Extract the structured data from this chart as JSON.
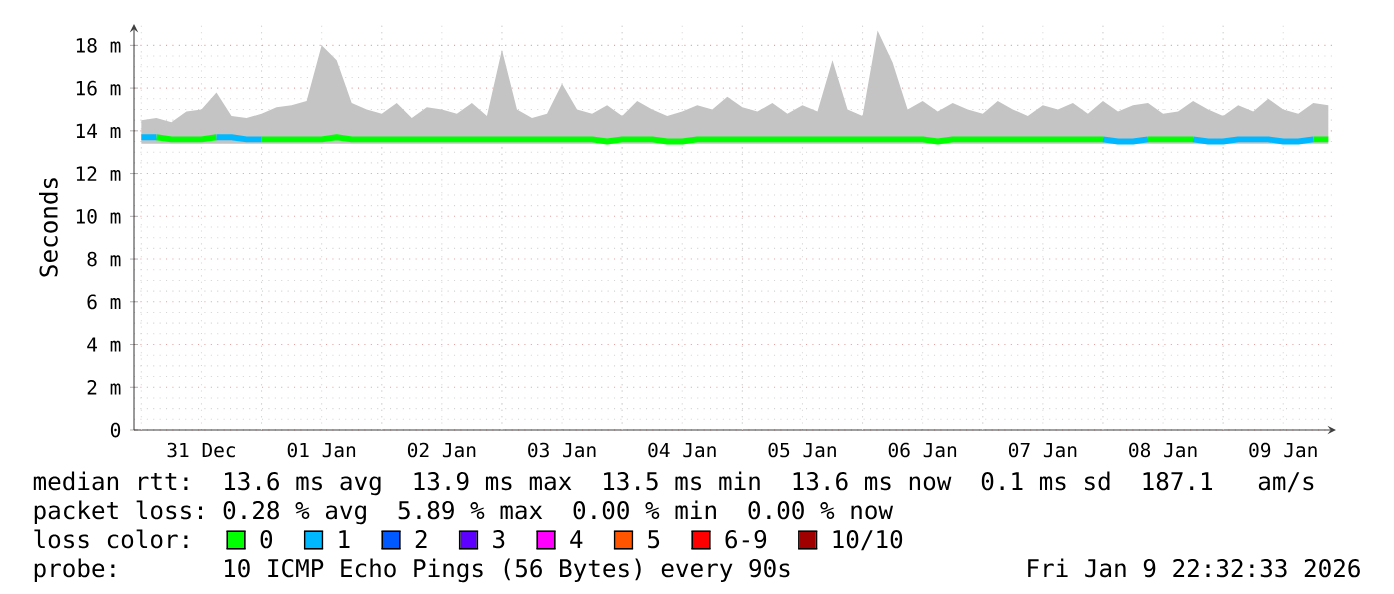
{
  "chart_data": {
    "type": "line",
    "ylabel": "Seconds",
    "legend_title": "loss color:",
    "legend": "bottom",
    "grid": true,
    "xlim": [
      "2025-12-30T22:32",
      "2026-01-09T22:32"
    ],
    "xticks": [
      {
        "value": "2025-12-31T12:00",
        "label": "31 Dec"
      },
      {
        "value": "2026-01-01T12:00",
        "label": "01 Jan"
      },
      {
        "value": "2026-01-02T12:00",
        "label": "02 Jan"
      },
      {
        "value": "2026-01-03T12:00",
        "label": "03 Jan"
      },
      {
        "value": "2026-01-04T12:00",
        "label": "04 Jan"
      },
      {
        "value": "2026-01-05T12:00",
        "label": "05 Jan"
      },
      {
        "value": "2026-01-06T12:00",
        "label": "06 Jan"
      },
      {
        "value": "2026-01-07T12:00",
        "label": "07 Jan"
      },
      {
        "value": "2026-01-08T12:00",
        "label": "08 Jan"
      },
      {
        "value": "2026-01-09T12:00",
        "label": "09 Jan"
      }
    ],
    "ylim": [
      0,
      19
    ],
    "yticks": [
      0,
      {
        "value": 2,
        "label": "2 m"
      },
      {
        "value": 4,
        "label": "4 m"
      },
      {
        "value": 6,
        "label": "6 m"
      },
      {
        "value": 8,
        "label": "8 m"
      },
      {
        "value": 10,
        "label": "10 m"
      },
      {
        "value": 12,
        "label": "12 m"
      },
      {
        "value": 14,
        "label": "14 m"
      },
      {
        "value": 16,
        "label": "16 m"
      },
      {
        "value": 18,
        "label": "18 m"
      }
    ],
    "x": [
      "2025-12-31T00:00",
      "2025-12-31T03:00",
      "2025-12-31T06:00",
      "2025-12-31T09:00",
      "2025-12-31T12:00",
      "2025-12-31T15:00",
      "2025-12-31T18:00",
      "2025-12-31T21:00",
      "2026-01-01T00:00",
      "2026-01-01T03:00",
      "2026-01-01T06:00",
      "2026-01-01T09:00",
      "2026-01-01T12:00",
      "2026-01-01T15:00",
      "2026-01-01T18:00",
      "2026-01-01T21:00",
      "2026-01-02T00:00",
      "2026-01-02T03:00",
      "2026-01-02T06:00",
      "2026-01-02T09:00",
      "2026-01-02T12:00",
      "2026-01-02T15:00",
      "2026-01-02T18:00",
      "2026-01-02T21:00",
      "2026-01-03T00:00",
      "2026-01-03T03:00",
      "2026-01-03T06:00",
      "2026-01-03T09:00",
      "2026-01-03T12:00",
      "2026-01-03T15:00",
      "2026-01-03T18:00",
      "2026-01-03T21:00",
      "2026-01-04T00:00",
      "2026-01-04T03:00",
      "2026-01-04T06:00",
      "2026-01-04T09:00",
      "2026-01-04T12:00",
      "2026-01-04T15:00",
      "2026-01-04T18:00",
      "2026-01-04T21:00",
      "2026-01-05T00:00",
      "2026-01-05T03:00",
      "2026-01-05T06:00",
      "2026-01-05T09:00",
      "2026-01-05T12:00",
      "2026-01-05T15:00",
      "2026-01-05T18:00",
      "2026-01-05T21:00",
      "2026-01-06T00:00",
      "2026-01-06T03:00",
      "2026-01-06T06:00",
      "2026-01-06T09:00",
      "2026-01-06T12:00",
      "2026-01-06T15:00",
      "2026-01-06T18:00",
      "2026-01-06T21:00",
      "2026-01-07T00:00",
      "2026-01-07T03:00",
      "2026-01-07T06:00",
      "2026-01-07T09:00",
      "2026-01-07T12:00",
      "2026-01-07T15:00",
      "2026-01-07T18:00",
      "2026-01-07T21:00",
      "2026-01-08T00:00",
      "2026-01-08T03:00",
      "2026-01-08T06:00",
      "2026-01-08T09:00",
      "2026-01-08T12:00",
      "2026-01-08T15:00",
      "2026-01-08T18:00",
      "2026-01-08T21:00",
      "2026-01-09T00:00",
      "2026-01-09T03:00",
      "2026-01-09T06:00",
      "2026-01-09T09:00",
      "2026-01-09T12:00",
      "2026-01-09T15:00",
      "2026-01-09T18:00",
      "2026-01-09T21:00"
    ],
    "series": [
      {
        "name": "0",
        "color": "#00ff00",
        "values": [
          null,
          13.7,
          13.6,
          13.6,
          13.6,
          13.7,
          null,
          null,
          13.6,
          13.6,
          13.6,
          13.6,
          13.6,
          13.7,
          13.6,
          13.6,
          13.6,
          13.6,
          13.6,
          13.6,
          13.6,
          13.6,
          13.6,
          13.6,
          13.6,
          13.6,
          13.6,
          13.6,
          13.6,
          13.6,
          13.6,
          13.5,
          13.6,
          13.6,
          13.6,
          13.5,
          13.5,
          13.6,
          13.6,
          13.6,
          13.6,
          13.6,
          13.6,
          13.6,
          13.6,
          13.6,
          13.6,
          13.6,
          13.6,
          13.6,
          13.6,
          13.6,
          13.6,
          13.5,
          13.6,
          13.6,
          13.6,
          13.6,
          13.6,
          13.6,
          13.6,
          13.6,
          13.6,
          13.6,
          13.6,
          null,
          null,
          13.6,
          13.6,
          13.6,
          13.6,
          null,
          null,
          null,
          null,
          null,
          null,
          null,
          13.6,
          13.6
        ],
        "lower": [
          13.4,
          13.4,
          13.4,
          13.4,
          13.4,
          13.4,
          13.4,
          13.4,
          13.4,
          13.4,
          13.4,
          13.4,
          13.4,
          13.4,
          13.4,
          13.4,
          13.4,
          13.4,
          13.4,
          13.4,
          13.4,
          13.4,
          13.4,
          13.4,
          13.4,
          13.4,
          13.4,
          13.4,
          13.4,
          13.4,
          13.4,
          13.4,
          13.4,
          13.4,
          13.4,
          13.4,
          13.4,
          13.4,
          13.4,
          13.4,
          13.4,
          13.4,
          13.4,
          13.4,
          13.4,
          13.4,
          13.4,
          13.4,
          13.4,
          13.4,
          13.4,
          13.4,
          13.4,
          13.4,
          13.4,
          13.4,
          13.4,
          13.4,
          13.4,
          13.4,
          13.4,
          13.4,
          13.4,
          13.4,
          13.4,
          13.4,
          13.4,
          13.4,
          13.4,
          13.4,
          13.4,
          13.4,
          13.4,
          13.4,
          13.4,
          13.4,
          13.4,
          13.4,
          13.4,
          13.4
        ],
        "upper": [
          14.5,
          14.6,
          14.4,
          14.9,
          15.0,
          15.8,
          14.7,
          14.6,
          14.8,
          15.1,
          15.2,
          15.4,
          18.0,
          17.3,
          15.3,
          15.0,
          14.8,
          15.3,
          14.6,
          15.1,
          15.0,
          14.8,
          15.3,
          14.7,
          17.8,
          15.0,
          14.6,
          14.8,
          16.2,
          15.0,
          14.8,
          15.2,
          14.7,
          15.4,
          15.0,
          14.7,
          14.9,
          15.2,
          15.0,
          15.6,
          15.1,
          14.9,
          15.3,
          14.8,
          15.2,
          14.9,
          17.3,
          15.0,
          14.7,
          18.7,
          17.2,
          15.0,
          15.4,
          14.9,
          15.3,
          15.0,
          14.8,
          15.4,
          15.0,
          14.7,
          15.2,
          15.0,
          15.3,
          14.8,
          15.4,
          14.9,
          15.2,
          15.3,
          14.8,
          14.9,
          15.4,
          15.0,
          14.7,
          15.2,
          14.9,
          15.5,
          15.0,
          14.8,
          15.3,
          15.2
        ]
      },
      {
        "name": "1",
        "color": "#00b8ff",
        "values": [
          13.7,
          13.7,
          null,
          null,
          null,
          13.7,
          13.7,
          13.6,
          13.6,
          null,
          null,
          null,
          null,
          null,
          null,
          null,
          null,
          null,
          null,
          null,
          null,
          null,
          null,
          null,
          null,
          null,
          null,
          null,
          null,
          null,
          null,
          null,
          null,
          null,
          null,
          null,
          null,
          null,
          null,
          null,
          null,
          null,
          null,
          null,
          null,
          null,
          null,
          null,
          null,
          null,
          null,
          null,
          null,
          null,
          null,
          null,
          null,
          null,
          null,
          null,
          null,
          null,
          null,
          null,
          13.6,
          13.5,
          13.5,
          13.6,
          null,
          null,
          13.6,
          13.5,
          13.5,
          13.6,
          13.6,
          13.6,
          13.5,
          13.5,
          13.6,
          null
        ]
      },
      {
        "name": "2",
        "color": "#0059ff",
        "values": [
          null,
          null,
          null,
          null,
          null,
          null,
          null,
          null,
          null,
          null,
          null,
          null,
          null,
          null,
          null,
          null,
          null,
          null,
          null,
          null,
          null,
          null,
          null,
          null,
          null,
          null,
          null,
          null,
          null,
          null,
          null,
          null,
          null,
          null,
          null,
          null,
          null,
          null,
          null,
          null,
          null,
          null,
          null,
          null,
          null,
          null,
          null,
          null,
          null,
          null,
          null,
          null,
          null,
          null,
          null,
          null,
          null,
          null,
          null,
          null,
          null,
          null,
          null,
          null,
          null,
          null,
          null,
          null,
          null,
          null,
          null,
          null,
          null,
          null,
          null,
          null,
          null,
          null,
          null,
          null
        ]
      },
      {
        "name": "3",
        "color": "#5e00ff",
        "values": [
          null,
          null,
          null,
          null,
          null,
          null,
          null,
          null,
          null,
          null,
          null,
          null,
          null,
          null,
          null,
          null,
          null,
          null,
          null,
          null,
          null,
          null,
          null,
          null,
          null,
          null,
          null,
          null,
          null,
          null,
          null,
          null,
          null,
          null,
          null,
          null,
          null,
          null,
          null,
          null,
          null,
          null,
          null,
          null,
          null,
          null,
          null,
          null,
          null,
          null,
          null,
          null,
          null,
          null,
          null,
          null,
          null,
          null,
          null,
          null,
          null,
          null,
          null,
          null,
          null,
          null,
          null,
          null,
          null,
          null,
          null,
          null,
          null,
          null,
          null,
          null,
          null,
          null,
          null,
          null
        ]
      },
      {
        "name": "4",
        "color": "#ff00ff",
        "values": [
          null,
          null,
          null,
          null,
          null,
          null,
          null,
          null,
          null,
          null,
          null,
          null,
          null,
          null,
          null,
          null,
          null,
          null,
          null,
          null,
          null,
          null,
          null,
          null,
          null,
          null,
          null,
          null,
          null,
          null,
          null,
          null,
          null,
          null,
          null,
          null,
          null,
          null,
          null,
          null,
          null,
          null,
          null,
          null,
          null,
          null,
          null,
          null,
          null,
          null,
          null,
          null,
          null,
          null,
          null,
          null,
          null,
          null,
          null,
          null,
          null,
          null,
          null,
          null,
          null,
          null,
          null,
          null,
          null,
          null,
          null,
          null,
          null,
          null,
          null,
          null,
          null,
          null,
          null,
          null
        ]
      },
      {
        "name": "5",
        "color": "#ff5500",
        "values": [
          null,
          null,
          null,
          null,
          null,
          null,
          null,
          null,
          null,
          null,
          null,
          null,
          null,
          null,
          null,
          null,
          null,
          null,
          null,
          null,
          null,
          null,
          null,
          null,
          null,
          null,
          null,
          null,
          null,
          null,
          null,
          null,
          null,
          null,
          null,
          null,
          null,
          null,
          null,
          null,
          null,
          null,
          null,
          null,
          null,
          null,
          null,
          null,
          null,
          null,
          null,
          null,
          null,
          null,
          null,
          null,
          null,
          null,
          null,
          null,
          null,
          null,
          null,
          null,
          null,
          null,
          null,
          null,
          null,
          null,
          null,
          null,
          null,
          null,
          null,
          null,
          null,
          null,
          null,
          null
        ]
      },
      {
        "name": "6-9",
        "color": "#ff0000",
        "values": [
          null,
          null,
          null,
          null,
          null,
          null,
          null,
          null,
          null,
          null,
          null,
          null,
          null,
          null,
          null,
          null,
          null,
          null,
          null,
          null,
          null,
          null,
          null,
          null,
          null,
          null,
          null,
          null,
          null,
          null,
          null,
          null,
          null,
          null,
          null,
          null,
          null,
          null,
          null,
          null,
          null,
          null,
          null,
          null,
          null,
          null,
          null,
          null,
          null,
          null,
          null,
          null,
          null,
          null,
          null,
          null,
          null,
          null,
          null,
          null,
          null,
          null,
          null,
          null,
          null,
          null,
          null,
          null,
          null,
          null,
          null,
          null,
          null,
          null,
          null,
          null,
          null,
          null,
          null,
          null
        ]
      },
      {
        "name": "10/10",
        "color": "#a10000",
        "values": [
          null,
          null,
          null,
          null,
          null,
          null,
          null,
          null,
          null,
          null,
          null,
          null,
          null,
          null,
          null,
          null,
          null,
          null,
          null,
          null,
          null,
          null,
          null,
          null,
          null,
          null,
          null,
          null,
          null,
          null,
          null,
          null,
          null,
          null,
          null,
          null,
          null,
          null,
          null,
          null,
          null,
          null,
          null,
          null,
          null,
          null,
          null,
          null,
          null,
          null,
          null,
          null,
          null,
          null,
          null,
          null,
          null,
          null,
          null,
          null,
          null,
          null,
          null,
          null,
          null,
          null,
          null,
          null,
          null,
          null,
          null,
          null,
          null,
          null,
          null,
          null,
          null,
          null,
          null,
          null
        ]
      }
    ],
    "annotations": [
      "median rtt:",
      "13.6 ms avg",
      "13.9 ms max",
      "13.5 ms min",
      "13.6 ms now",
      "0.1 ms sd",
      "187.1",
      "am/s",
      "packet loss:",
      "0.28 % avg",
      "5.89 % max",
      "0.00 % min",
      "0.00 % now",
      "probe:",
      "10 ICMP Echo Pings (56 Bytes) every 90s",
      "Fri Jan 9 22:32:33 2026"
    ]
  }
}
